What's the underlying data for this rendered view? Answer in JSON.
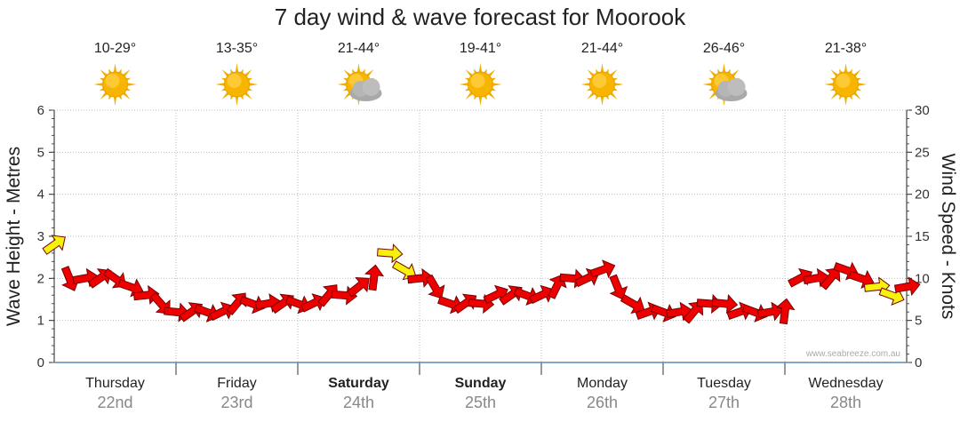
{
  "chart_data": {
    "type": "line",
    "title": "7 day wind & wave forecast for Moorook",
    "ylabel_left": "Wave Height - Metres",
    "ylabel_right": "Wind Speed - Knots",
    "ylim_left": [
      0,
      6
    ],
    "ylim_right": [
      0,
      30
    ],
    "yticks_left": [
      "0",
      "1",
      "2",
      "3",
      "4",
      "5",
      "6"
    ],
    "yticks_right": [
      "0",
      "5",
      "10",
      "15",
      "20",
      "25",
      "30"
    ],
    "days": [
      {
        "day": "Thursday",
        "date": "22nd",
        "temp": "10-29°",
        "icon": "sun-icon",
        "bold": false
      },
      {
        "day": "Friday",
        "date": "23rd",
        "temp": "13-35°",
        "icon": "sun-icon",
        "bold": false
      },
      {
        "day": "Saturday",
        "date": "24th",
        "temp": "21-44°",
        "icon": "sun-cloud-icon",
        "bold": true
      },
      {
        "day": "Sunday",
        "date": "25th",
        "temp": "19-41°",
        "icon": "sun-icon",
        "bold": true
      },
      {
        "day": "Monday",
        "date": "26th",
        "temp": "21-44°",
        "icon": "sun-icon",
        "bold": false
      },
      {
        "day": "Tuesday",
        "date": "27th",
        "temp": "26-46°",
        "icon": "sun-cloud-icon",
        "bold": false
      },
      {
        "day": "Wednesday",
        "date": "28th",
        "temp": "21-38°",
        "icon": "sun-icon",
        "bold": false
      }
    ],
    "series": [
      {
        "name": "Wind Speed - Knots",
        "x_hours": [
          0,
          3,
          6,
          9,
          12,
          15,
          18,
          21,
          24,
          27,
          30,
          33,
          36,
          39,
          42,
          45,
          48,
          51,
          54,
          57,
          60,
          63,
          66,
          69,
          72,
          75,
          78,
          81,
          84,
          87,
          90,
          93,
          96,
          99,
          102,
          105,
          108,
          111,
          114,
          117,
          120,
          123,
          126,
          129,
          132,
          135,
          138,
          141,
          144,
          147,
          150,
          153,
          156,
          159,
          162,
          165,
          168
        ],
        "values": [
          14,
          10,
          10,
          10,
          10,
          9,
          8,
          7,
          6,
          6,
          6,
          6,
          7,
          7,
          7,
          7,
          7,
          7,
          8,
          8,
          9,
          10,
          13,
          11,
          10,
          9,
          7,
          7,
          7,
          8,
          8,
          8,
          8,
          9,
          10,
          10,
          11,
          9,
          7,
          6,
          6,
          6,
          6,
          7,
          7,
          6,
          6,
          6,
          6,
          10,
          10,
          10,
          11,
          10,
          9,
          8,
          9
        ],
        "colors": [
          "#f7f20c",
          "#ee0000",
          "#ee0000",
          "#ee0000",
          "#ee0000",
          "#ee0000",
          "#ee0000",
          "#ee0000",
          "#ee0000",
          "#ee0000",
          "#ee0000",
          "#ee0000",
          "#ee0000",
          "#ee0000",
          "#ee0000",
          "#ee0000",
          "#ee0000",
          "#ee0000",
          "#ee0000",
          "#ee0000",
          "#ee0000",
          "#ee0000",
          "#f7f20c",
          "#f7f20c",
          "#ee0000",
          "#ee0000",
          "#ee0000",
          "#ee0000",
          "#ee0000",
          "#ee0000",
          "#ee0000",
          "#ee0000",
          "#ee0000",
          "#ee0000",
          "#ee0000",
          "#ee0000",
          "#ee0000",
          "#ee0000",
          "#ee0000",
          "#ee0000",
          "#ee0000",
          "#ee0000",
          "#ee0000",
          "#ee0000",
          "#ee0000",
          "#ee0000",
          "#ee0000",
          "#ee0000",
          "#ee0000",
          "#ee0000",
          "#ee0000",
          "#ee0000",
          "#ee0000",
          "#ee0000",
          "#f7f20c",
          "#f7f20c",
          "#ee0000"
        ]
      }
    ],
    "grid": true,
    "credit": "www.seabreeze.com.au"
  }
}
